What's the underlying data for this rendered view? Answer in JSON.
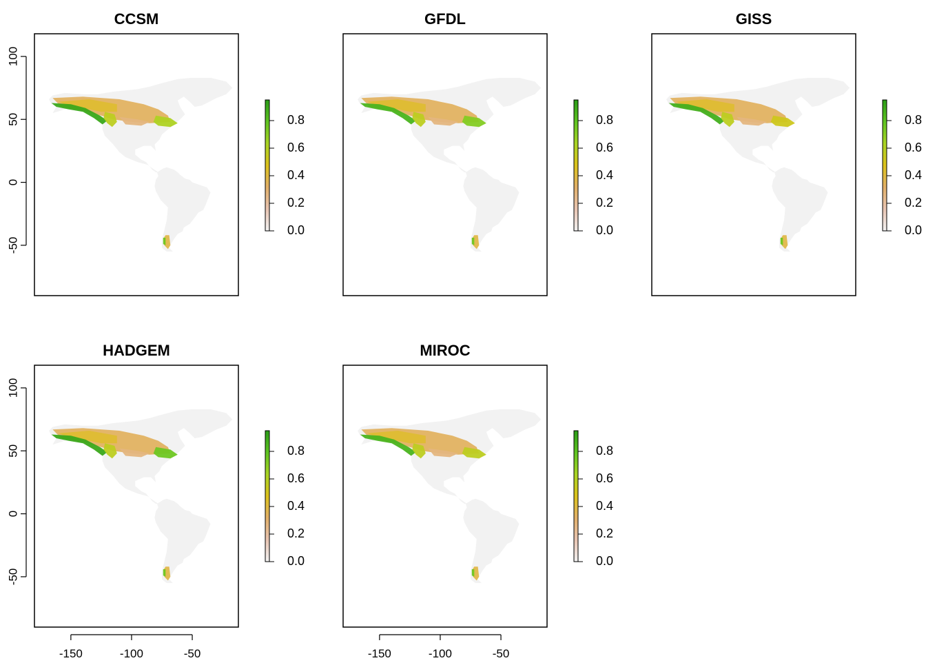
{
  "colors": {
    "scale": [
      "#f2f2f2",
      "#e8c4b2",
      "#e2b069",
      "#dcc21c",
      "#a9d424",
      "#5fc421",
      "#2a9c17"
    ],
    "frame": "#000000",
    "background": "#ffffff"
  },
  "axes": {
    "x_ticks": [
      -150,
      -100,
      -50
    ],
    "x_tick_labels": [
      "-150",
      "-100",
      "-50"
    ],
    "y_ticks": [
      100,
      50,
      0,
      -50
    ],
    "y_tick_labels": [
      "100",
      "50",
      "0",
      "-50"
    ],
    "x_range": [
      -180,
      -12
    ],
    "y_range": [
      -90,
      118
    ]
  },
  "legend": {
    "ticks": [
      0.0,
      0.2,
      0.4,
      0.6,
      0.8
    ],
    "tick_labels": [
      "0.0",
      "0.2",
      "0.4",
      "0.6",
      "0.8"
    ],
    "range": [
      0,
      0.95
    ]
  },
  "panels": [
    {
      "title": "CCSM",
      "show_y_axis": true,
      "show_x_axis": false,
      "east_green": 0.65,
      "west_green": 0.95
    },
    {
      "title": "GFDL",
      "show_y_axis": false,
      "show_x_axis": false,
      "east_green": 0.75,
      "west_green": 0.9
    },
    {
      "title": "GISS",
      "show_y_axis": false,
      "show_x_axis": false,
      "east_green": 0.55,
      "west_green": 0.92
    },
    {
      "title": "HADGEM",
      "show_y_axis": true,
      "show_x_axis": true,
      "east_green": 0.8,
      "west_green": 0.95
    },
    {
      "title": "MIROC",
      "show_y_axis": false,
      "show_x_axis": true,
      "east_green": 0.6,
      "west_green": 0.9
    }
  ]
}
